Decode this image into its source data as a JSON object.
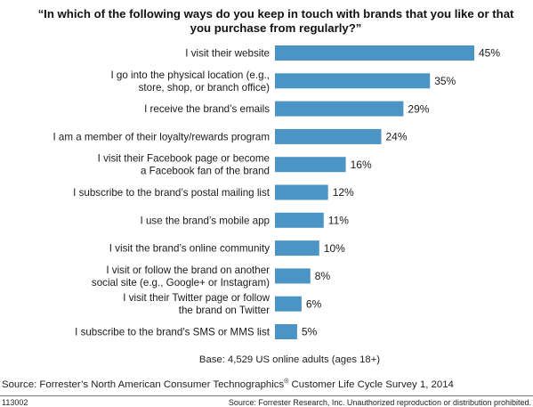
{
  "title": "“In which of the following ways do you keep in touch with brands that you like or that you purchase from regularly?”",
  "chart_data": {
    "type": "bar",
    "orientation": "horizontal",
    "title": "“In which of the following ways do you keep in touch with brands that you like or that you purchase from regularly?”",
    "categories": [
      "I visit their website",
      "I go into the physical location (e.g., store, shop, or branch office)",
      "I receive the brand’s emails",
      "I am a member of their loyalty/rewards program",
      "I visit their Facebook page or become a Facebook fan of the brand",
      "I subscribe to the brand’s postal mailing list",
      "I use the brand’s mobile app",
      "I visit the brand’s online community",
      "I visit or follow the brand on another social site (e.g., Google+ or Instagram)",
      "I visit their Twitter page or follow the brand on Twitter",
      "I subscribe to the brand’s SMS or MMS list"
    ],
    "label_lines": [
      [
        "I visit their website"
      ],
      [
        "I go into the physical location (e.g.,",
        "store, shop, or branch office)"
      ],
      [
        "I receive the brand’s emails"
      ],
      [
        "I am a member of their loyalty/rewards program"
      ],
      [
        "I visit their Facebook page or become",
        "a Facebook fan of the brand"
      ],
      [
        "I subscribe to the brand’s postal mailing list"
      ],
      [
        "I use the brand’s mobile app"
      ],
      [
        "I visit the brand’s online community"
      ],
      [
        "I visit or follow the brand on another",
        "social site (e.g., Google+ or Instagram)"
      ],
      [
        "I visit their Twitter page or follow",
        "the brand on Twitter"
      ],
      [
        "I subscribe to the brand’s SMS or MMS list"
      ]
    ],
    "values": [
      45,
      35,
      29,
      24,
      16,
      12,
      11,
      10,
      8,
      6,
      5
    ],
    "value_labels": [
      "45%",
      "35%",
      "29%",
      "24%",
      "16%",
      "12%",
      "11%",
      "10%",
      "8%",
      "6%",
      "5%"
    ],
    "unit": "%",
    "xlim": [
      0,
      45
    ],
    "bar_color": "#4d94c6",
    "grid": false,
    "legend": "none"
  },
  "base_note": "Base: 4,529 US online adults (ages 18+)",
  "source": {
    "prefix": "Source: Forrester’s North American Consumer Technographics",
    "mark": "®",
    "suffix": " Customer Life Cycle Survey 1, 2014"
  },
  "footer": {
    "code": "113002",
    "copyright": "Source: Forrester Research, Inc. Unauthorized reproduction or distribution prohibited."
  }
}
